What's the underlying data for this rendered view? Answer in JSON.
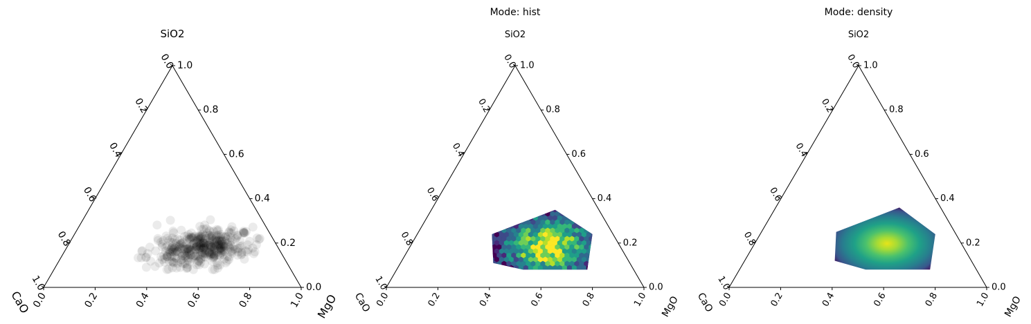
{
  "chart_data": [
    {
      "type": "scatter",
      "panel_title": "",
      "axes": {
        "top": "SiO2",
        "left": "CaO",
        "right": "MgO"
      },
      "ticks": [
        "0.0",
        "0.2",
        "0.4",
        "0.6",
        "0.8",
        "1.0"
      ],
      "marker_color": "#000000",
      "marker_alpha": 0.08,
      "cloud": {
        "center": {
          "SiO2": 0.18,
          "MgO": 0.52,
          "CaO": 0.3
        },
        "spread": {
          "SiO2": 0.06,
          "MgO": 0.1
        }
      }
    },
    {
      "type": "heatmap",
      "panel_title": "Mode: hist",
      "axes": {
        "top": "SiO2",
        "left": "CaO",
        "right": "MgO"
      },
      "ticks": [
        "0.0",
        "0.2",
        "0.4",
        "0.6",
        "0.8",
        "1.0"
      ],
      "colormap": "viridis",
      "hull": [
        {
          "SiO2": 0.35,
          "MgO": 0.48
        },
        {
          "SiO2": 0.24,
          "MgO": 0.68
        },
        {
          "SiO2": 0.08,
          "MgO": 0.74
        },
        {
          "SiO2": 0.08,
          "MgO": 0.49
        },
        {
          "SiO2": 0.11,
          "MgO": 0.36
        },
        {
          "SiO2": 0.24,
          "MgO": 0.29
        }
      ]
    },
    {
      "type": "heatmap",
      "panel_title": "Mode: density",
      "axes": {
        "top": "SiO2",
        "left": "CaO",
        "right": "MgO"
      },
      "ticks": [
        "0.0",
        "0.2",
        "0.4",
        "0.6",
        "0.8",
        "1.0"
      ],
      "colormap": "viridis",
      "hull": [
        {
          "SiO2": 0.36,
          "MgO": 0.48
        },
        {
          "SiO2": 0.24,
          "MgO": 0.68
        },
        {
          "SiO2": 0.08,
          "MgO": 0.74
        },
        {
          "SiO2": 0.08,
          "MgO": 0.49
        },
        {
          "SiO2": 0.12,
          "MgO": 0.35
        },
        {
          "SiO2": 0.25,
          "MgO": 0.29
        }
      ]
    }
  ]
}
